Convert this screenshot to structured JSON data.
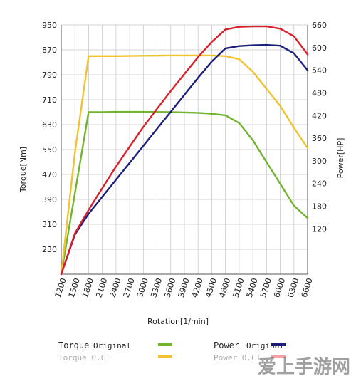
{
  "chart_data": {
    "type": "line",
    "xlabel": "Rotation[1/min]",
    "ylabel_left": "Torque[Nm]",
    "ylabel_right": "Power[HP]",
    "x_ticks": [
      1200,
      1500,
      1800,
      2100,
      2400,
      2700,
      3000,
      3300,
      3600,
      3900,
      4200,
      4500,
      4800,
      5100,
      5400,
      5700,
      6000,
      6300,
      6600
    ],
    "xlim": [
      1200,
      6600
    ],
    "ylim_left": [
      150,
      950
    ],
    "ylim_right": [
      0,
      660
    ],
    "y_ticks_left": [
      230,
      310,
      390,
      470,
      550,
      630,
      710,
      790,
      870,
      950
    ],
    "y_ticks_right": [
      120,
      180,
      240,
      300,
      360,
      420,
      480,
      540,
      600,
      660
    ],
    "grid": true,
    "series": [
      {
        "name": "Torque Original",
        "axis": "left",
        "color": "#72b42e",
        "x": [
          1200,
          1500,
          1800,
          2100,
          2400,
          3000,
          3600,
          4200,
          4500,
          4800,
          5100,
          5400,
          5700,
          6000,
          6300,
          6600
        ],
        "y": [
          150,
          410,
          670,
          670,
          671,
          671,
          670,
          668,
          665,
          660,
          635,
          580,
          510,
          440,
          370,
          330
        ]
      },
      {
        "name": "Torque 0.CT",
        "axis": "left",
        "color": "#f1c230",
        "x": [
          1200,
          1500,
          1800,
          2100,
          2400,
          3000,
          3600,
          4200,
          4500,
          4800,
          5100,
          5400,
          5700,
          6000,
          6300,
          6600
        ],
        "y": [
          150,
          540,
          850,
          850,
          850,
          851,
          852,
          852,
          852,
          850,
          840,
          800,
          745,
          690,
          620,
          555
        ]
      },
      {
        "name": "Power Original",
        "axis": "right",
        "color": "#1c1f7a",
        "x": [
          1200,
          1500,
          1800,
          2100,
          2400,
          2700,
          3000,
          3300,
          3600,
          3900,
          4200,
          4500,
          4800,
          5100,
          5400,
          5700,
          6000,
          6300,
          6600
        ],
        "y": [
          0,
          105,
          160,
          205,
          250,
          295,
          340,
          385,
          430,
          475,
          520,
          563,
          598,
          604,
          606,
          607,
          605,
          585,
          540
        ]
      },
      {
        "name": "Power 0.CT",
        "axis": "right",
        "color": "#d91f2a",
        "x": [
          1200,
          1500,
          1800,
          2100,
          2400,
          2700,
          3000,
          3300,
          3600,
          3900,
          4200,
          4500,
          4800,
          5100,
          5400,
          5700,
          6000,
          6300,
          6600
        ],
        "y": [
          0,
          108,
          170,
          228,
          285,
          338,
          390,
          438,
          485,
          530,
          575,
          615,
          648,
          655,
          656,
          656,
          650,
          630,
          582
        ]
      }
    ]
  },
  "legend": {
    "torque_title": "Torque",
    "torque_original": "Original",
    "torque_oct": "Torque 0.CT",
    "power_title": "Power",
    "power_original": "Original",
    "power_oct": "Power 0.CT"
  },
  "watermark": "爱上手游网"
}
